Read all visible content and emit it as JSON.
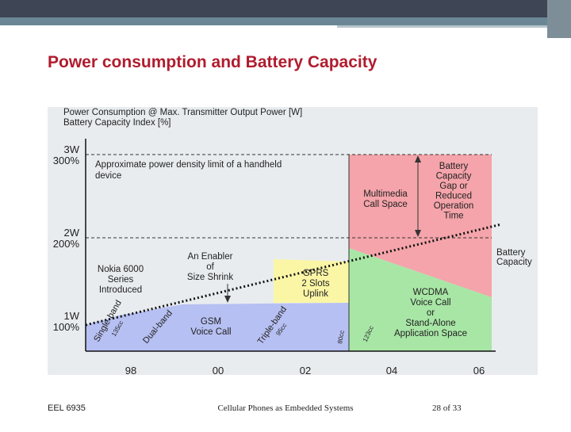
{
  "title": "Power consumption and Battery Capacity",
  "figure": {
    "axis_title": [
      "Power Consumption @ Max. Transmitter Output Power [W]",
      "Battery Capacity Index [%]"
    ],
    "y_labels": [
      [
        "3W",
        "300%"
      ],
      [
        "2W",
        "200%"
      ],
      [
        "1W",
        "100%"
      ]
    ],
    "x_labels": [
      "98",
      "00",
      "02",
      "04",
      "06"
    ],
    "limit_note": [
      "Approximate power density limit of a handheld",
      "device"
    ],
    "nokia_note": [
      "Nokia 6000",
      "Series",
      "Introduced"
    ],
    "enabler_note": [
      "An Enabler",
      "of",
      "Size Shrink"
    ],
    "gprs_note": [
      "GPRS",
      "2 Slots",
      "Uplink"
    ],
    "gsm_note": [
      "GSM",
      "Voice Call"
    ],
    "multimedia_note": [
      "Multimedia",
      "Call Space"
    ],
    "gap_note": [
      "Battery",
      "Capacity",
      "Gap or",
      "Reduced",
      "Operation",
      "Time"
    ],
    "wcdma_note": [
      "WCDMA",
      "Voice Call",
      "or",
      "Stand-Alone",
      "Application Space"
    ],
    "battery_note": [
      "Battery",
      "Capacity"
    ],
    "rotated": [
      "Single-band",
      "135cc",
      "Dual-band",
      "Triple-band",
      "95cc",
      "80cc",
      "123cc"
    ]
  },
  "footer": {
    "left": "EEL 6935",
    "center": "Cellular Phones as Embedded Systems",
    "right": "28 of 33"
  }
}
